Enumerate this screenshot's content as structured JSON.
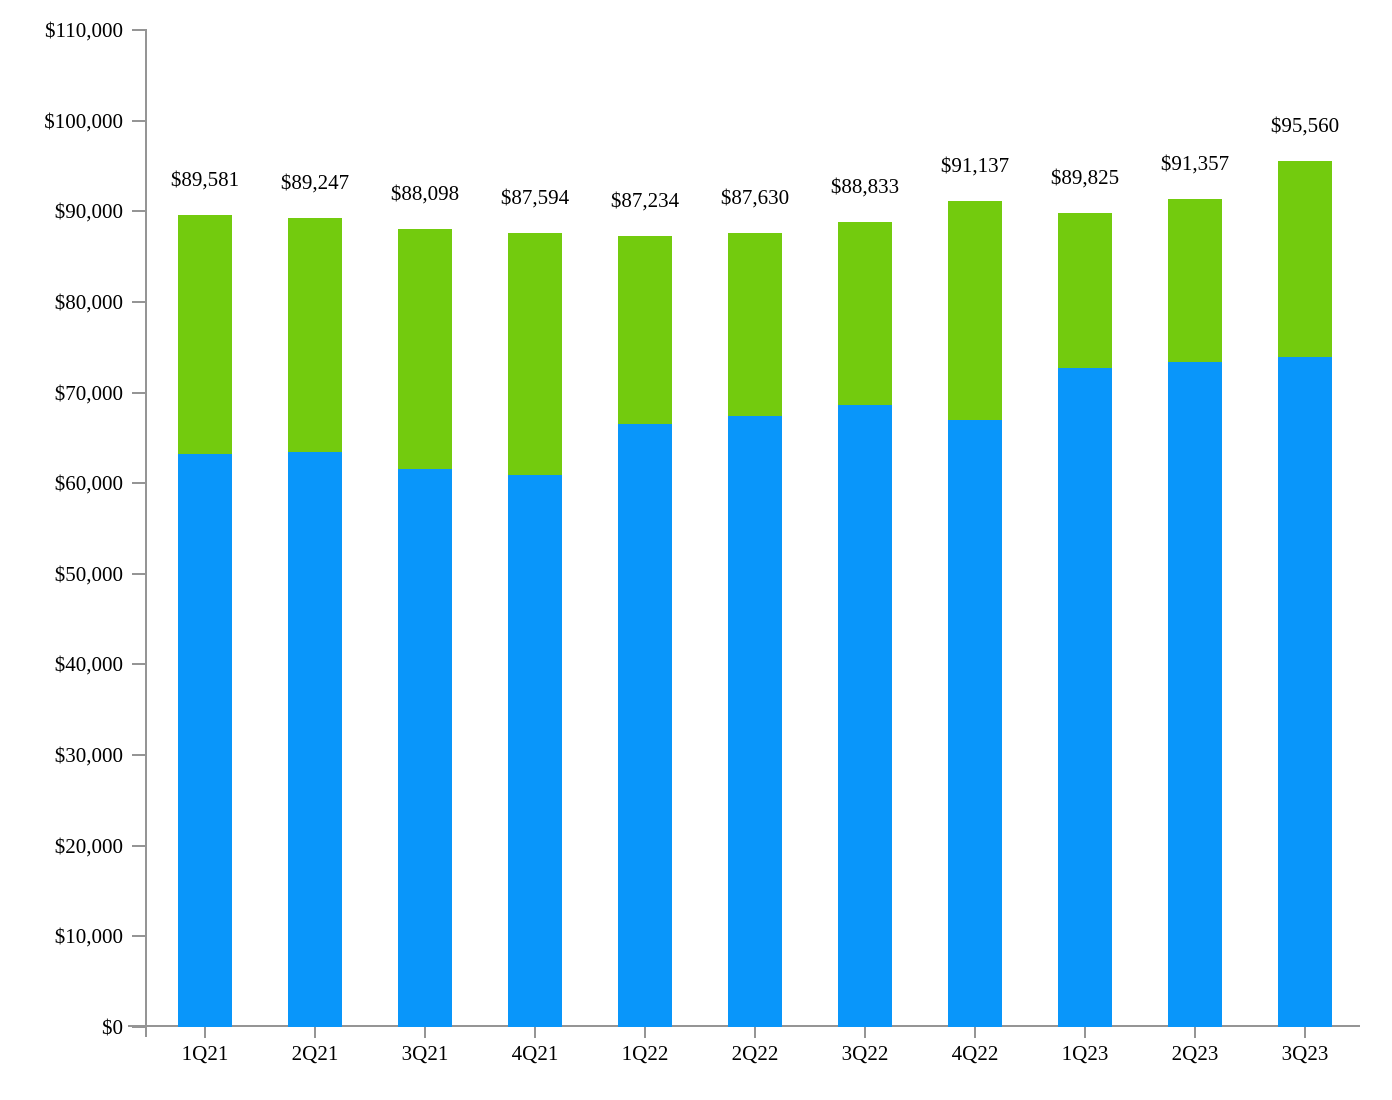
{
  "chart_data": {
    "type": "bar",
    "subtype": "stacked",
    "title": "",
    "xlabel": "",
    "ylabel": "",
    "categories": [
      "1Q21",
      "2Q21",
      "3Q21",
      "4Q21",
      "1Q22",
      "2Q22",
      "3Q22",
      "4Q22",
      "1Q23",
      "2Q23",
      "3Q23"
    ],
    "series": [
      {
        "name": "blue-segment",
        "color": "#0996fa",
        "values": [
          63200,
          63450,
          61550,
          60900,
          66550,
          67400,
          68600,
          67000,
          72700,
          73350,
          73950
        ]
      },
      {
        "name": "green-segment",
        "color": "#73cb0e",
        "values": [
          26381,
          25797,
          26548,
          26694,
          20684,
          20230,
          20233,
          24137,
          17125,
          18007,
          21610
        ]
      }
    ],
    "totals": [
      89581,
      89247,
      88098,
      87594,
      87234,
      87630,
      88833,
      91137,
      89825,
      91357,
      95560
    ],
    "total_labels": [
      "$89,581",
      "$89,247",
      "$88,098",
      "$87,594",
      "$87,234",
      "$87,630",
      "$88,833",
      "$91,137",
      "$89,825",
      "$91,357",
      "$95,560"
    ],
    "y_axis": {
      "min": 0,
      "max": 110000,
      "tick_step": 10000,
      "tick_labels": [
        "$0",
        "$10,000",
        "$20,000",
        "$30,000",
        "$40,000",
        "$50,000",
        "$60,000",
        "$70,000",
        "$80,000",
        "$90,000",
        "$100,000",
        "$110,000"
      ]
    },
    "grid": "off",
    "legend": "none",
    "axis_color": "#959595",
    "text_color": "#000000",
    "background_color": "#ffffff"
  }
}
